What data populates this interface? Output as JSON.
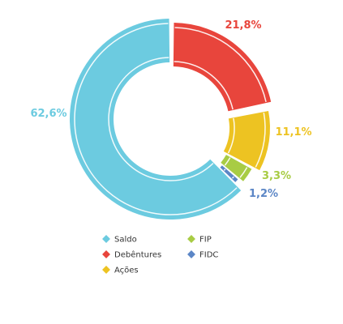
{
  "chart_data": {
    "type": "pie",
    "variant": "donut",
    "title": "",
    "categories": [
      "Debêntures",
      "Ações",
      "FIP",
      "FIDC",
      "Saldo"
    ],
    "values": [
      21.8,
      11.1,
      3.3,
      1.2,
      62.6
    ],
    "labels": [
      "21,8%",
      "11,1%",
      "3,3%",
      "1,2%",
      "62,6%"
    ],
    "colors": [
      "#e8453c",
      "#edc322",
      "#a8cc44",
      "#5b86c6",
      "#6ccbe0"
    ],
    "legend": {
      "placement": "bottom",
      "items": [
        {
          "label": "Saldo",
          "color": "#6ccbe0"
        },
        {
          "label": "FIP",
          "color": "#a8cc44"
        },
        {
          "label": "Debêntures",
          "color": "#e8453c"
        },
        {
          "label": "FIDC",
          "color": "#5b86c6"
        },
        {
          "label": "Ações",
          "color": "#edc322"
        }
      ]
    }
  }
}
